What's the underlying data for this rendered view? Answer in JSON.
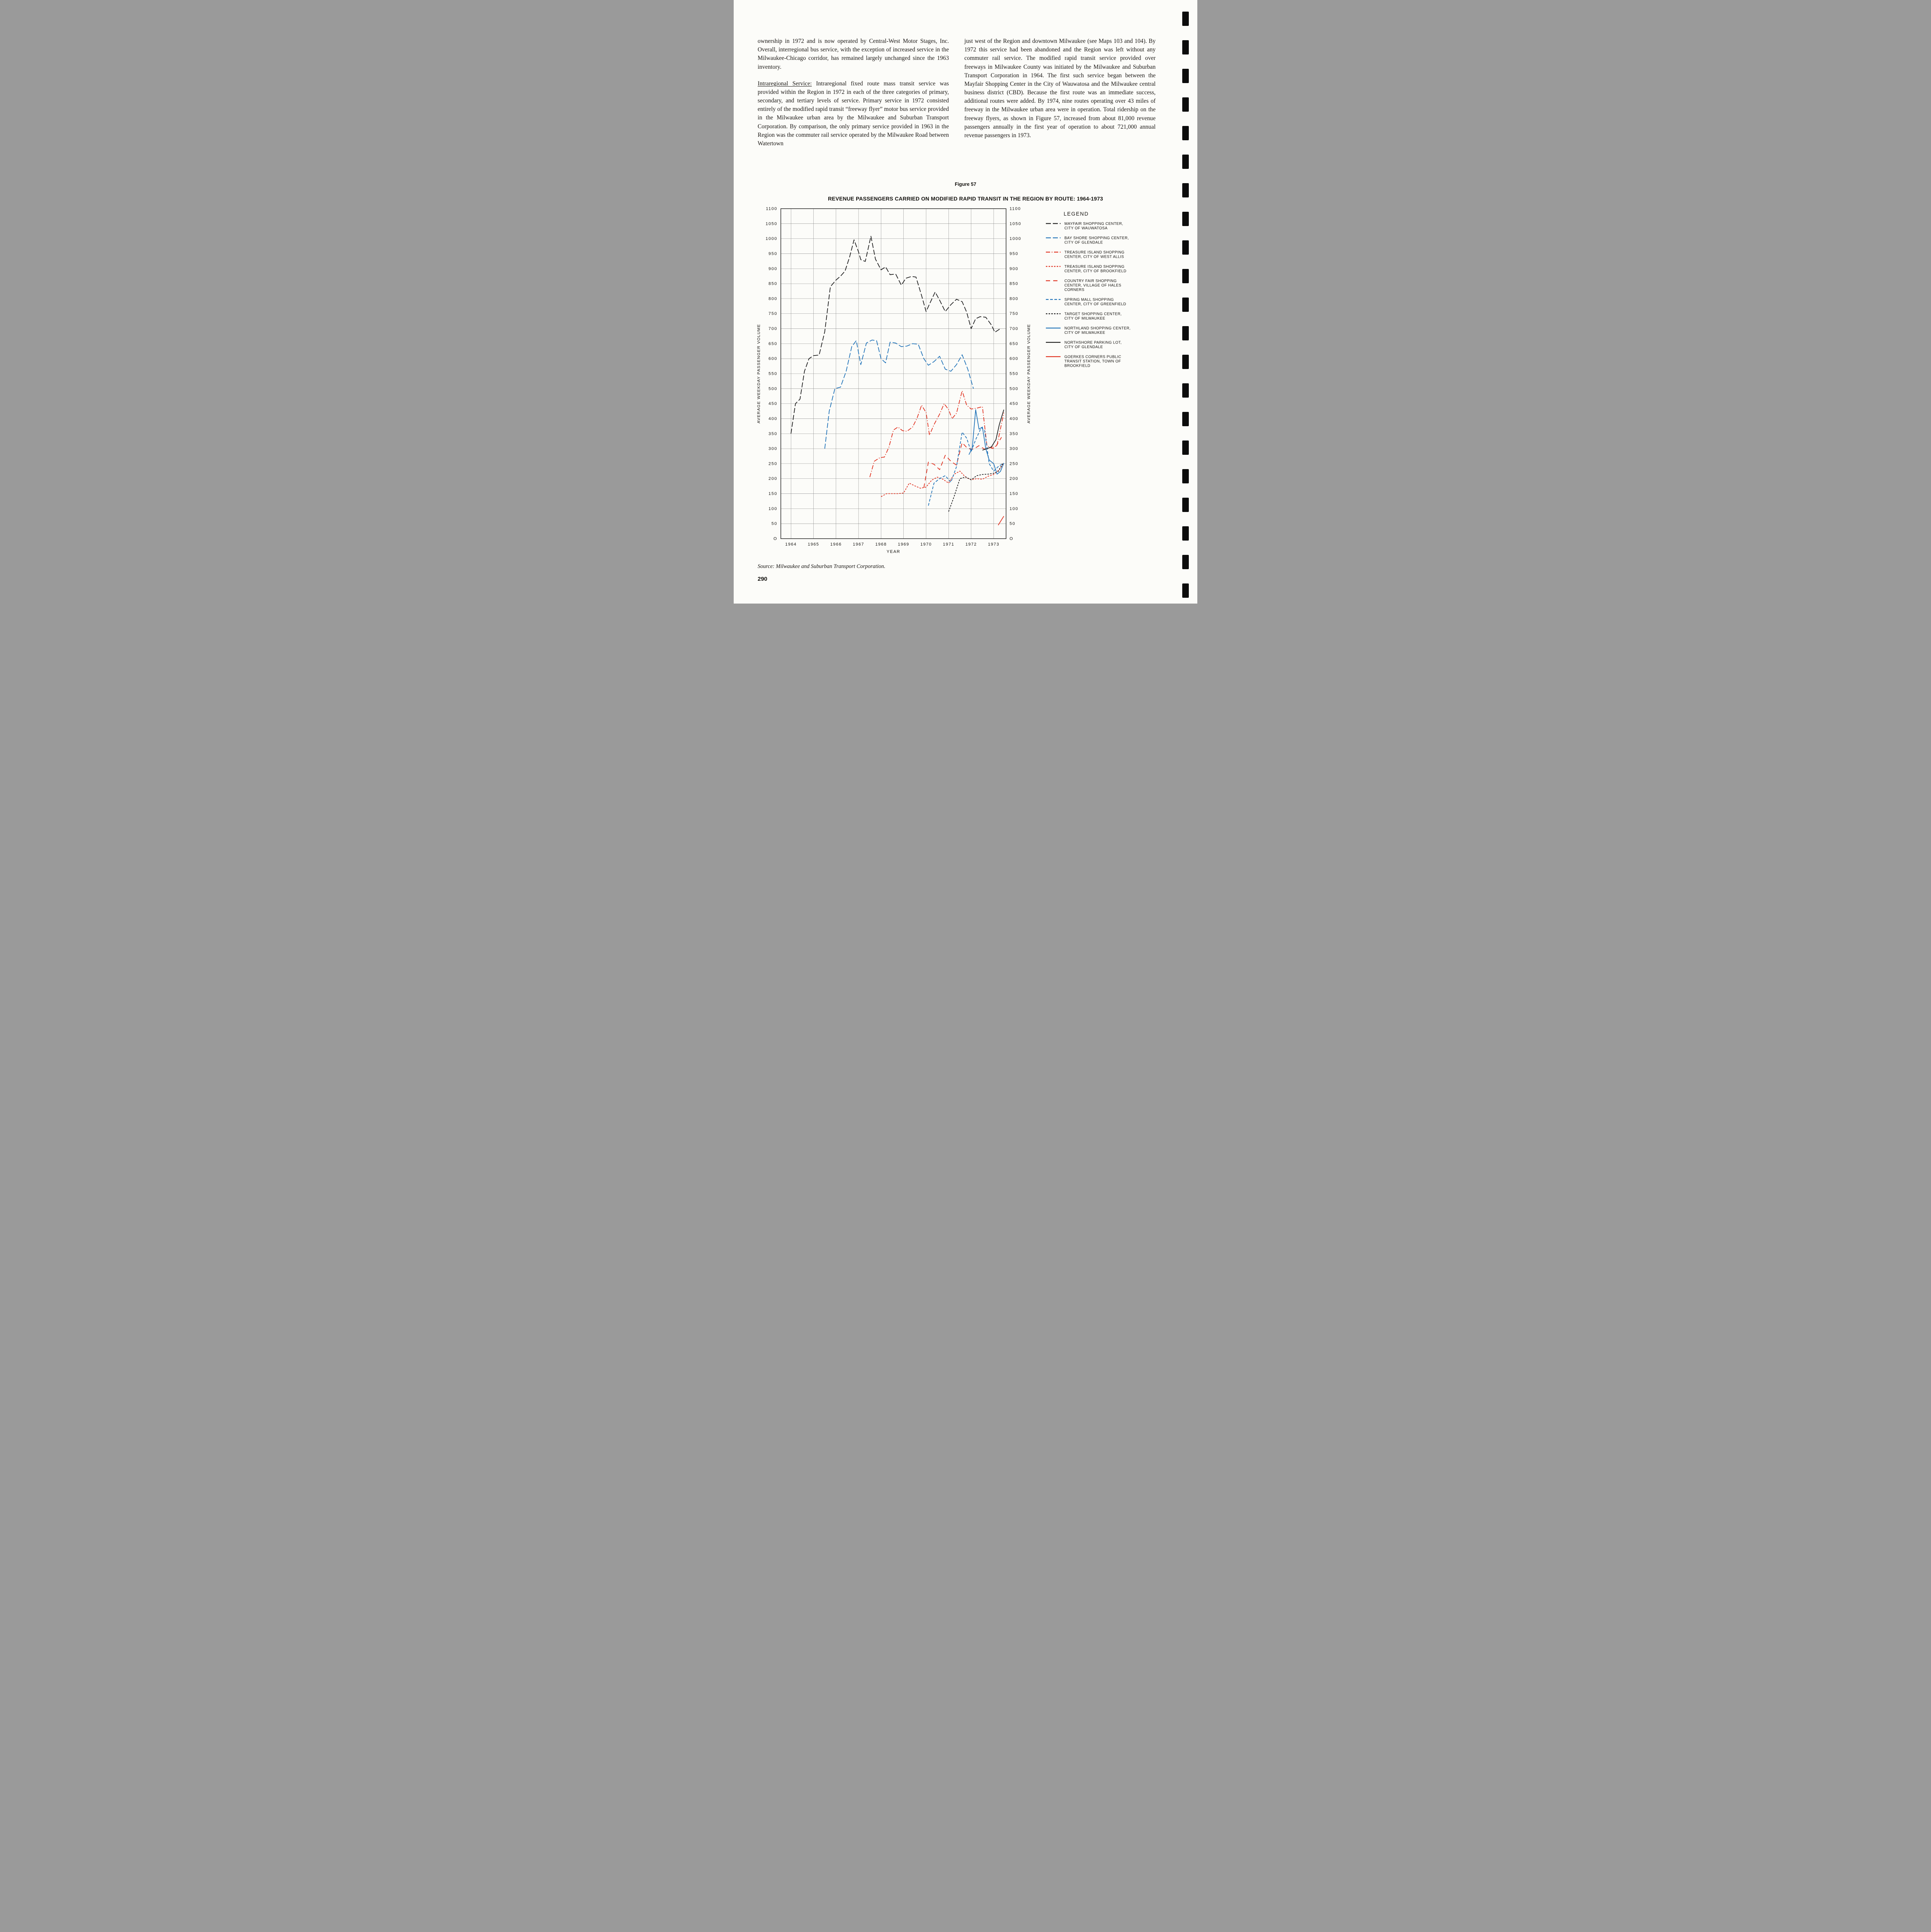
{
  "page": {
    "number": "290",
    "source_note": "Source:  Milwaukee and Suburban Transport Corporation."
  },
  "article": {
    "left_column": {
      "para1": "ownership in 1972 and is now operated by Central-West Motor Stages, Inc. Overall, interregional bus service, with the exception of increased service in the Milwaukee-Chicago corridor, has remained largely unchanged since the 1963 inventory.",
      "para2_lead": "Intraregional Service:",
      "para2_rest": "Intraregional fixed route mass transit service was provided within the Region in 1972 in each of the three categories of primary, secondary, and tertiary levels of service. Primary service in 1972 consisted entirely of the modified rapid transit “freeway flyer” motor bus service provided in the Milwaukee urban area by the Milwaukee and Suburban Transport Corporation. By comparison, the only primary service provided in 1963 in the Region was the commuter rail service operated by the Milwaukee Road between Watertown"
    },
    "right_column": {
      "para1": "just west of the Region and downtown Milwaukee (see Maps 103 and 104). By 1972 this service had been abandoned and the Region was left without any commuter rail service. The modified rapid transit service provided over freeways in Milwaukee County was initiated by the Milwaukee and Suburban Transport Corporation in 1964. The first such service began between the Mayfair Shopping Center in the City of Wauwatosa and the Milwaukee central business district (CBD). Because the first route was an immediate success, additional routes were added. By 1974, nine routes operating over 43 miles of freeway in the Milwaukee urban area were in operation. Total ridership on the freeway flyers, as shown in Figure 57, increased from about 81,000 revenue passengers annually in the first year of operation to about 721,000 annual revenue passengers in 1973."
    }
  },
  "figure": {
    "label": "Figure 57"
  },
  "chart_data": {
    "type": "line",
    "title": "REVENUE PASSENGERS CARRIED ON MODIFIED RAPID TRANSIT IN THE REGION BY ROUTE: 1964-1973",
    "xlabel": "YEAR",
    "ylabel_left": "AVERAGE WEEKDAY PASSENGER VOLUME",
    "ylabel_right": "AVERAGE WEEKDAY PASSENGER VOLUME",
    "legend_title": "LEGEND",
    "legend_position": "right",
    "grid": true,
    "xlim": [
      1963.55,
      1973.55
    ],
    "ylim": [
      0,
      1100
    ],
    "x_ticks": [
      1964,
      1965,
      1966,
      1967,
      1968,
      1969,
      1970,
      1971,
      1972,
      1973
    ],
    "y_ticks": [
      0,
      50,
      100,
      150,
      200,
      250,
      300,
      350,
      400,
      450,
      500,
      550,
      600,
      650,
      700,
      750,
      800,
      850,
      900,
      950,
      1000,
      1050,
      1100
    ],
    "y_zero_label": "O",
    "colors": {
      "black": "#1c1c1c",
      "blue": "#1f72b8",
      "red": "#e0301e"
    },
    "series": [
      {
        "name": "MAYFAIR SHOPPING CENTER, CITY OF WAUWATOSA",
        "legend_lines": [
          "MAYFAIR SHOPPING CENTER,",
          "CITY OF WAUWATOSA"
        ],
        "color": "#1c1c1c",
        "dash": "long-dash",
        "points": [
          [
            1964.0,
            350
          ],
          [
            1964.2,
            450
          ],
          [
            1964.4,
            465
          ],
          [
            1964.6,
            558
          ],
          [
            1964.8,
            600
          ],
          [
            1965.0,
            610
          ],
          [
            1965.25,
            612
          ],
          [
            1965.5,
            690
          ],
          [
            1965.75,
            840
          ],
          [
            1966.0,
            862
          ],
          [
            1966.2,
            875
          ],
          [
            1966.4,
            892
          ],
          [
            1966.6,
            938
          ],
          [
            1966.8,
            996
          ],
          [
            1967.0,
            956
          ],
          [
            1967.1,
            930
          ],
          [
            1967.3,
            924
          ],
          [
            1967.55,
            1008
          ],
          [
            1967.75,
            932
          ],
          [
            1968.0,
            896
          ],
          [
            1968.2,
            906
          ],
          [
            1968.4,
            880
          ],
          [
            1968.65,
            882
          ],
          [
            1968.9,
            845
          ],
          [
            1969.1,
            868
          ],
          [
            1969.35,
            874
          ],
          [
            1969.55,
            872
          ],
          [
            1969.8,
            810
          ],
          [
            1970.0,
            757
          ],
          [
            1970.2,
            790
          ],
          [
            1970.4,
            822
          ],
          [
            1970.6,
            795
          ],
          [
            1970.85,
            757
          ],
          [
            1971.1,
            780
          ],
          [
            1971.35,
            798
          ],
          [
            1971.6,
            790
          ],
          [
            1971.8,
            755
          ],
          [
            1972.0,
            700
          ],
          [
            1972.2,
            733
          ],
          [
            1972.4,
            740
          ],
          [
            1972.65,
            738
          ],
          [
            1972.9,
            712
          ],
          [
            1973.05,
            688
          ],
          [
            1973.3,
            700
          ]
        ]
      },
      {
        "name": "BAY SHORE SHOPPING CENTER, CITY OF GLENDALE",
        "legend_lines": [
          "BAY SHORE SHOPPING CENTER,",
          "CITY OF GLENDALE"
        ],
        "color": "#1f72b8",
        "dash": "long-dash",
        "points": [
          [
            1965.5,
            300
          ],
          [
            1965.7,
            425
          ],
          [
            1965.95,
            500
          ],
          [
            1966.2,
            505
          ],
          [
            1966.45,
            558
          ],
          [
            1966.7,
            640
          ],
          [
            1966.9,
            660
          ],
          [
            1967.1,
            580
          ],
          [
            1967.35,
            652
          ],
          [
            1967.6,
            662
          ],
          [
            1967.8,
            660
          ],
          [
            1968.0,
            600
          ],
          [
            1968.2,
            586
          ],
          [
            1968.4,
            655
          ],
          [
            1968.65,
            652
          ],
          [
            1968.9,
            640
          ],
          [
            1969.15,
            642
          ],
          [
            1969.4,
            650
          ],
          [
            1969.65,
            648
          ],
          [
            1969.9,
            600
          ],
          [
            1970.1,
            578
          ],
          [
            1970.35,
            590
          ],
          [
            1970.6,
            608
          ],
          [
            1970.85,
            565
          ],
          [
            1971.1,
            558
          ],
          [
            1971.35,
            580
          ],
          [
            1971.6,
            613
          ],
          [
            1971.85,
            565
          ],
          [
            1972.1,
            500
          ]
        ]
      },
      {
        "name": "TREASURE ISLAND SHOPPING CENTER, CITY OF WEST ALLIS",
        "legend_lines": [
          "TREASURE ISLAND SHOPPING",
          "CENTER, CITY OF WEST ALLIS"
        ],
        "color": "#e0301e",
        "dash": "dash-dot",
        "points": [
          [
            1967.5,
            205
          ],
          [
            1967.7,
            258
          ],
          [
            1967.95,
            270
          ],
          [
            1968.15,
            272
          ],
          [
            1968.35,
            305
          ],
          [
            1968.55,
            362
          ],
          [
            1968.75,
            372
          ],
          [
            1968.95,
            360
          ],
          [
            1969.15,
            358
          ],
          [
            1969.4,
            372
          ],
          [
            1969.6,
            402
          ],
          [
            1969.8,
            445
          ],
          [
            1970.0,
            420
          ],
          [
            1970.15,
            345
          ],
          [
            1970.35,
            380
          ],
          [
            1970.6,
            415
          ],
          [
            1970.8,
            450
          ],
          [
            1971.0,
            430
          ],
          [
            1971.15,
            400
          ],
          [
            1971.35,
            418
          ],
          [
            1971.6,
            493
          ],
          [
            1971.8,
            445
          ],
          [
            1972.0,
            432
          ],
          [
            1972.25,
            435
          ],
          [
            1972.5,
            440
          ],
          [
            1972.7,
            310
          ],
          [
            1972.95,
            300
          ],
          [
            1973.15,
            312
          ],
          [
            1973.45,
            420
          ]
        ]
      },
      {
        "name": "TREASURE ISLAND SHOPPING CENTER, CITY OF BROOKFIELD",
        "legend_lines": [
          "TREASURE ISLAND SHOPPING",
          "CENTER, CITY OF BROOKFIELD"
        ],
        "color": "#e0301e",
        "dash": "short-dash",
        "points": [
          [
            1968.0,
            140
          ],
          [
            1968.25,
            150
          ],
          [
            1968.5,
            150
          ],
          [
            1968.75,
            150
          ],
          [
            1969.0,
            152
          ],
          [
            1969.25,
            185
          ],
          [
            1969.5,
            176
          ],
          [
            1969.75,
            168
          ],
          [
            1970.0,
            172
          ],
          [
            1970.25,
            195
          ],
          [
            1970.5,
            205
          ],
          [
            1970.75,
            198
          ],
          [
            1971.0,
            185
          ],
          [
            1971.25,
            215
          ],
          [
            1971.5,
            225
          ],
          [
            1971.75,
            205
          ],
          [
            1972.0,
            196
          ],
          [
            1972.25,
            200
          ],
          [
            1972.5,
            198
          ],
          [
            1972.75,
            208
          ],
          [
            1973.0,
            214
          ],
          [
            1973.25,
            230
          ],
          [
            1973.45,
            252
          ]
        ]
      },
      {
        "name": "COUNTRY FAIR SHOPPING CENTER, VILLAGE OF HALES CORNERS",
        "legend_lines": [
          "COUNTRY FAIR SHOPPING",
          "CENTER, VILLAGE OF HALES",
          "CORNERS"
        ],
        "color": "#e0301e",
        "dash": "long-dash-wide",
        "points": [
          [
            1969.9,
            170
          ],
          [
            1970.1,
            255
          ],
          [
            1970.35,
            248
          ],
          [
            1970.6,
            230
          ],
          [
            1970.85,
            278
          ],
          [
            1971.1,
            258
          ],
          [
            1971.35,
            245
          ],
          [
            1971.6,
            320
          ],
          [
            1971.85,
            300
          ],
          [
            1972.1,
            298
          ],
          [
            1972.35,
            310
          ],
          [
            1972.6,
            298
          ],
          [
            1972.85,
            304
          ],
          [
            1973.1,
            308
          ],
          [
            1973.35,
            338
          ]
        ]
      },
      {
        "name": "SPRING MALL SHOPPING CENTER, CITY OF GREENFIELD",
        "legend_lines": [
          "SPRING MALL SHOPPING",
          "CENTER, CITY OF GREENFIELD"
        ],
        "color": "#1f72b8",
        "dash": "dash",
        "points": [
          [
            1970.1,
            110
          ],
          [
            1970.35,
            185
          ],
          [
            1970.6,
            200
          ],
          [
            1970.85,
            210
          ],
          [
            1971.1,
            188
          ],
          [
            1971.35,
            240
          ],
          [
            1971.6,
            355
          ],
          [
            1971.8,
            335
          ],
          [
            1972.0,
            290
          ],
          [
            1972.2,
            330
          ],
          [
            1972.45,
            370
          ],
          [
            1972.6,
            360
          ],
          [
            1972.8,
            250
          ],
          [
            1973.0,
            225
          ],
          [
            1973.2,
            240
          ],
          [
            1973.4,
            250
          ]
        ]
      },
      {
        "name": "TARGET SHOPPING CENTER, CITY OF MILWAUKEE",
        "legend_lines": [
          "TARGET SHOPPING CENTER,",
          "CITY OF MILWAUKEE"
        ],
        "color": "#1c1c1c",
        "dash": "short-dash",
        "points": [
          [
            1971.0,
            90
          ],
          [
            1971.25,
            142
          ],
          [
            1971.5,
            200
          ],
          [
            1971.75,
            206
          ],
          [
            1972.0,
            196
          ],
          [
            1972.25,
            210
          ],
          [
            1972.5,
            214
          ],
          [
            1972.75,
            215
          ],
          [
            1973.0,
            218
          ],
          [
            1973.2,
            224
          ],
          [
            1973.4,
            250
          ]
        ]
      },
      {
        "name": "NORTHLAND SHOPPING CENTER, CITY OF MILWAUKEE",
        "legend_lines": [
          "NORTHLAND SHOPPING CENTER,",
          "CITY OF MILWAUKEE"
        ],
        "color": "#1f72b8",
        "dash": "solid",
        "points": [
          [
            1971.9,
            280
          ],
          [
            1972.05,
            302
          ],
          [
            1972.2,
            430
          ],
          [
            1972.35,
            365
          ],
          [
            1972.5,
            372
          ],
          [
            1972.65,
            300
          ],
          [
            1972.8,
            262
          ],
          [
            1973.0,
            250
          ],
          [
            1973.15,
            215
          ],
          [
            1973.3,
            224
          ],
          [
            1973.45,
            252
          ]
        ]
      },
      {
        "name": "NORTHSHORE PARKING LOT, CITY OF GLENDALE",
        "legend_lines": [
          "NORTHSHORE PARKING LOT,",
          "CITY OF GLENDALE"
        ],
        "color": "#1c1c1c",
        "dash": "solid",
        "points": [
          [
            1972.5,
            295
          ],
          [
            1972.7,
            300
          ],
          [
            1972.9,
            306
          ],
          [
            1973.1,
            330
          ],
          [
            1973.25,
            380
          ],
          [
            1973.45,
            430
          ]
        ]
      },
      {
        "name": "GOERKES CORNERS PUBLIC TRANSIT STATION, TOWN OF BROOKFIELD",
        "legend_lines": [
          "GOERKES CORNERS PUBLIC",
          "TRANSIT STATION, TOWN OF",
          "BROOKFIELD"
        ],
        "color": "#e0301e",
        "dash": "solid",
        "points": [
          [
            1973.2,
            45
          ],
          [
            1973.45,
            75
          ]
        ]
      }
    ]
  }
}
